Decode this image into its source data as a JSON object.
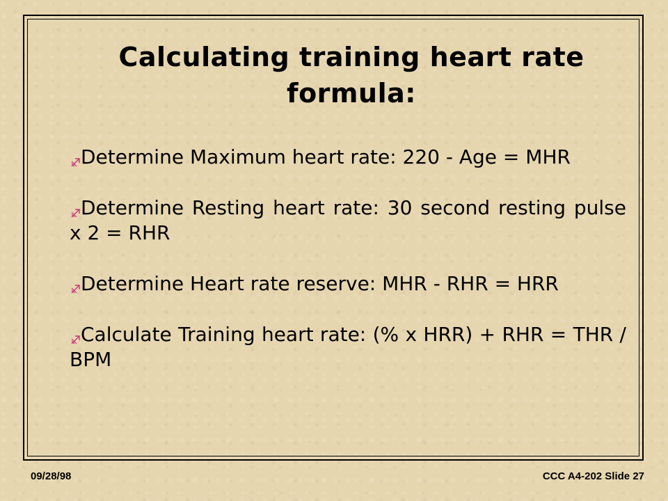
{
  "slide": {
    "title": "Calculating training heart rate formula:",
    "bullets": [
      {
        "icon": "arrow-bullet-icon",
        "text": "Determine Maximum heart rate:      220 - Age = MHR"
      },
      {
        "icon": "arrow-bullet-icon",
        "text": "Determine Resting heart rate:       30 second resting pulse x 2 = RHR"
      },
      {
        "icon": "arrow-bullet-icon",
        "text": "Determine Heart rate reserve:      MHR  - RHR = HRR"
      },
      {
        "icon": "arrow-bullet-icon",
        "text": "Calculate Training heart rate:               (% x HRR) + RHR = THR / BPM"
      }
    ]
  },
  "footer": {
    "date": "09/28/98",
    "slide_label": "CCC A4-202 Slide 27"
  },
  "colors": {
    "background": "#e6d6b0",
    "bullet_accent": "#c8337a",
    "text": "#000000"
  }
}
